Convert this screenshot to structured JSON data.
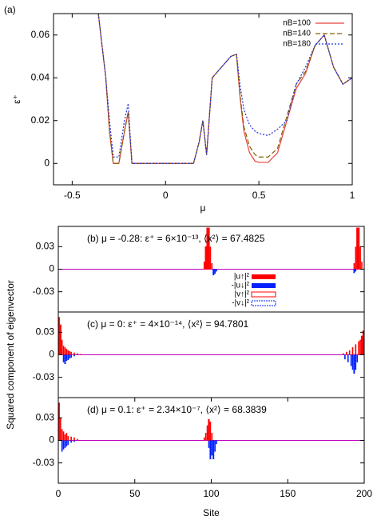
{
  "chart_data": [
    {
      "type": "line",
      "title": "(a)",
      "y_label": "ε⁺",
      "x_label": "μ",
      "xlim": [
        -0.6,
        1
      ],
      "xticks": [
        -0.5,
        0,
        0.5,
        1
      ],
      "ylim": [
        -0.01,
        0.07
      ],
      "yticks": [
        0,
        0.02,
        0.04,
        0.06
      ],
      "legend": "upper right",
      "x": [
        -0.36,
        -0.32,
        -0.3,
        -0.28,
        -0.25,
        -0.22,
        -0.2,
        -0.18,
        -0.15,
        0,
        0.15,
        0.18,
        0.2,
        0.22,
        0.25,
        0.3,
        0.35,
        0.38,
        0.4,
        0.42,
        0.45,
        0.48,
        0.5,
        0.55,
        0.6,
        0.65,
        0.7,
        0.75,
        0.8,
        0.85,
        0.9,
        0.95,
        1.0
      ],
      "series": [
        {
          "name": "nB=100",
          "color": "#e8403a",
          "dash": "solid",
          "values": [
            0.07,
            0.04,
            0.015,
            0,
            0,
            0.015,
            0.024,
            0,
            0,
            0,
            0,
            0.01,
            0.02,
            0.004,
            0.04,
            0.045,
            0.05,
            0.051,
            0.03,
            0.015,
            0.005,
            0.001,
            0.0005,
            0.0005,
            0.005,
            0.02,
            0.035,
            0.042,
            0.055,
            0.06,
            0.045,
            0.037,
            0.04
          ]
        },
        {
          "name": "nB=140",
          "color": "#806000",
          "dash": "dashed",
          "values": [
            0.07,
            0.04,
            0.015,
            0,
            0,
            0.015,
            0.024,
            0,
            0,
            0,
            0,
            0.01,
            0.02,
            0.004,
            0.04,
            0.045,
            0.05,
            0.051,
            0.031,
            0.017,
            0.008,
            0.004,
            0.003,
            0.003,
            0.007,
            0.022,
            0.037,
            0.043,
            0.055,
            0.06,
            0.045,
            0.037,
            0.04
          ]
        },
        {
          "name": "nB=180",
          "color": "#2030e0",
          "dash": "dotted",
          "values": [
            0.07,
            0.04,
            0.02,
            0.003,
            0.003,
            0.02,
            0.028,
            0,
            0,
            0,
            0,
            0.01,
            0.02,
            0.004,
            0.04,
            0.045,
            0.05,
            0.051,
            0.036,
            0.025,
            0.018,
            0.015,
            0.014,
            0.013,
            0.016,
            0.02,
            0.037,
            0.045,
            0.055,
            0.06,
            0.045,
            0.037,
            0.04
          ]
        }
      ]
    },
    {
      "type": "bar",
      "annotation": "(b) μ = -0.28: ε⁺ = 6×10⁻¹³, ⟨x²⟩ = 67.4825",
      "xlim": [
        0,
        200
      ],
      "ylim": [
        -0.057,
        0.057
      ],
      "yticks": [
        -0.03,
        0,
        0.03
      ],
      "legend": "center",
      "series": [
        {
          "name": "|u↑|²",
          "color": "#ff0000",
          "style": "filled",
          "x": [
            95,
            96,
            97,
            98,
            99,
            100,
            193,
            194,
            195,
            196,
            197,
            198
          ],
          "values": [
            0.01,
            0.03,
            0.055,
            0.055,
            0.03,
            0.008,
            0.008,
            0.03,
            0.055,
            0.055,
            0.03,
            0.01
          ]
        },
        {
          "name": "-|u↓|²",
          "color": "#0020ff",
          "style": "filled",
          "x": [
            101,
            102,
            103,
            193,
            194
          ],
          "values": [
            -0.008,
            -0.006,
            -0.003,
            -0.005,
            -0.003
          ]
        },
        {
          "name": "|v↑|²",
          "color": "#ff0000",
          "style": "outline",
          "x": [
            96,
            97,
            98,
            195,
            196
          ],
          "values": [
            0.03,
            0.055,
            0.055,
            0.055,
            0.055
          ]
        },
        {
          "name": "-|v↓|²",
          "color": "#0020ff",
          "style": "outline",
          "x": [
            101,
            102,
            193
          ],
          "values": [
            -0.008,
            -0.006,
            -0.005
          ]
        }
      ]
    },
    {
      "type": "bar",
      "annotation": "(c) μ = 0: ε⁺ = 4×10⁻¹⁴, ⟨x²⟩ = 94.7801",
      "y_label": "Squared component of eigenvector",
      "xlim": [
        0,
        200
      ],
      "ylim": [
        -0.057,
        0.057
      ],
      "yticks": [
        -0.03,
        0,
        0.03
      ],
      "series": [
        {
          "name": "|u↑|²",
          "color": "#ff0000",
          "style": "filled",
          "x": [
            0,
            1,
            2,
            3,
            4,
            5,
            6,
            7,
            8,
            10,
            12,
            14,
            186,
            188,
            190,
            192,
            194,
            196,
            197,
            198,
            199
          ],
          "values": [
            0.05,
            0.04,
            0.02,
            0.012,
            0.01,
            0.008,
            0.006,
            0.005,
            0.004,
            0.003,
            0.002,
            0.001,
            0.002,
            0.004,
            0.006,
            0.01,
            0.014,
            0.018,
            0.02,
            0.025,
            0.032
          ]
        },
        {
          "name": "-|u↓|²",
          "color": "#0020ff",
          "style": "filled",
          "x": [
            3,
            4,
            5,
            6,
            7,
            8,
            10,
            187,
            189,
            191,
            192,
            193,
            194,
            195
          ],
          "values": [
            -0.01,
            -0.012,
            -0.008,
            -0.007,
            -0.005,
            -0.004,
            -0.002,
            -0.006,
            -0.01,
            -0.015,
            -0.02,
            -0.025,
            -0.02,
            -0.01
          ]
        },
        {
          "name": "|v↑|²",
          "color": "#ff0000",
          "style": "outline",
          "x": [
            0,
            1,
            198,
            199
          ],
          "values": [
            0.05,
            0.04,
            0.025,
            0.032
          ]
        },
        {
          "name": "-|v↓|²",
          "color": "#0020ff",
          "style": "outline",
          "x": [
            4,
            193
          ],
          "values": [
            -0.012,
            -0.025
          ]
        }
      ]
    },
    {
      "type": "bar",
      "annotation": "(d) μ = 0.1: ε⁺ = 2.34×10⁻⁷, ⟨x²⟩ = 68.3839",
      "x_label": "Site",
      "xlim": [
        0,
        200
      ],
      "xticks": [
        0,
        50,
        100,
        150,
        200
      ],
      "ylim": [
        -0.057,
        0.057
      ],
      "yticks": [
        -0.03,
        0,
        0.03
      ],
      "series": [
        {
          "name": "|u↑|²",
          "color": "#ff0000",
          "style": "filled",
          "x": [
            0,
            1,
            2,
            3,
            4,
            5,
            6,
            8,
            10,
            12,
            95,
            96,
            97,
            98,
            99,
            100
          ],
          "values": [
            0.05,
            0.03,
            0.015,
            0.012,
            0.008,
            0.01,
            0.006,
            0.005,
            0.004,
            0.002,
            0.004,
            0.01,
            0.02,
            0.028,
            0.025,
            0.01
          ]
        },
        {
          "name": "-|u↓|²",
          "color": "#0020ff",
          "style": "filled",
          "x": [
            2,
            3,
            4,
            5,
            6,
            8,
            10,
            98,
            99,
            100,
            101,
            102,
            103
          ],
          "values": [
            -0.015,
            -0.012,
            -0.01,
            -0.008,
            -0.006,
            -0.003,
            -0.002,
            -0.01,
            -0.025,
            -0.02,
            -0.025,
            -0.015,
            -0.005
          ]
        },
        {
          "name": "|v↑|²",
          "color": "#ff0000",
          "style": "outline",
          "x": [
            0,
            98
          ],
          "values": [
            0.05,
            0.028
          ]
        },
        {
          "name": "-|v↓|²",
          "color": "#0020ff",
          "style": "outline",
          "x": [
            99,
            101
          ],
          "values": [
            -0.025,
            -0.025
          ]
        }
      ]
    }
  ]
}
